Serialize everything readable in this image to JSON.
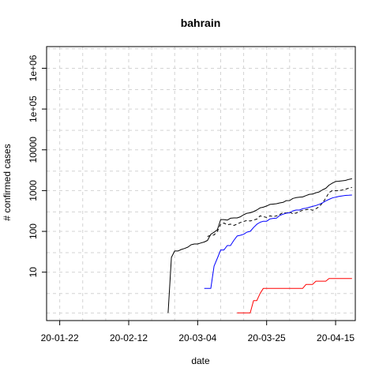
{
  "chart_data": {
    "type": "line",
    "title": "bahrain",
    "xlabel": "date",
    "ylabel": "# confirmed cases",
    "yscale": "log",
    "grid": true,
    "legend": "none",
    "x_range": [
      "2020-01-18",
      "2020-04-21"
    ],
    "y_range": [
      0.65,
      3400000
    ],
    "x_ticks": [
      {
        "label": "20-01-22",
        "date": "2020-01-22"
      },
      {
        "label": "20-02-12",
        "date": "2020-02-12"
      },
      {
        "label": "20-03-04",
        "date": "2020-03-04"
      },
      {
        "label": "20-03-25",
        "date": "2020-03-25"
      },
      {
        "label": "20-04-15",
        "date": "2020-04-15"
      }
    ],
    "y_ticks": [
      {
        "label": "10",
        "value": 10
      },
      {
        "label": "100",
        "value": 100
      },
      {
        "label": "1000",
        "value": 1000
      },
      {
        "label": "10000",
        "value": 10000
      },
      {
        "label": "1e+05",
        "value": 100000
      },
      {
        "label": "1e+06",
        "value": 1000000
      }
    ],
    "series": [
      {
        "color": "#000000",
        "dash": "solid",
        "points": [
          [
            "2020-02-24",
            1
          ],
          [
            "2020-02-25",
            23
          ],
          [
            "2020-02-26",
            33
          ],
          [
            "2020-02-27",
            33
          ],
          [
            "2020-02-28",
            36
          ],
          [
            "2020-02-29",
            38
          ],
          [
            "2020-03-01",
            41
          ],
          [
            "2020-03-02",
            47
          ],
          [
            "2020-03-03",
            49
          ],
          [
            "2020-03-04",
            49
          ],
          [
            "2020-03-05",
            52
          ],
          [
            "2020-03-06",
            55
          ],
          [
            "2020-03-07",
            60
          ],
          [
            "2020-03-08",
            85
          ],
          [
            "2020-03-09",
            95
          ],
          [
            "2020-03-10",
            110
          ],
          [
            "2020-03-11",
            195
          ],
          [
            "2020-03-12",
            195
          ],
          [
            "2020-03-13",
            189
          ],
          [
            "2020-03-14",
            210
          ],
          [
            "2020-03-15",
            214
          ],
          [
            "2020-03-16",
            214
          ],
          [
            "2020-03-17",
            228
          ],
          [
            "2020-03-18",
            256
          ],
          [
            "2020-03-19",
            278
          ],
          [
            "2020-03-20",
            285
          ],
          [
            "2020-03-21",
            305
          ],
          [
            "2020-03-22",
            334
          ],
          [
            "2020-03-23",
            377
          ],
          [
            "2020-03-24",
            392
          ],
          [
            "2020-03-25",
            419
          ],
          [
            "2020-03-26",
            458
          ],
          [
            "2020-03-27",
            466
          ],
          [
            "2020-03-28",
            476
          ],
          [
            "2020-03-29",
            499
          ],
          [
            "2020-03-30",
            515
          ],
          [
            "2020-03-31",
            567
          ],
          [
            "2020-04-01",
            569
          ],
          [
            "2020-04-02",
            643
          ],
          [
            "2020-04-03",
            672
          ],
          [
            "2020-04-04",
            688
          ],
          [
            "2020-04-05",
            700
          ],
          [
            "2020-04-06",
            756
          ],
          [
            "2020-04-07",
            811
          ],
          [
            "2020-04-08",
            823
          ],
          [
            "2020-04-09",
            887
          ],
          [
            "2020-04-10",
            925
          ],
          [
            "2020-04-11",
            1040
          ],
          [
            "2020-04-12",
            1136
          ],
          [
            "2020-04-13",
            1361
          ],
          [
            "2020-04-14",
            1528
          ],
          [
            "2020-04-15",
            1671
          ],
          [
            "2020-04-16",
            1700
          ],
          [
            "2020-04-17",
            1740
          ],
          [
            "2020-04-18",
            1773
          ],
          [
            "2020-04-19",
            1881
          ],
          [
            "2020-04-20",
            1952
          ]
        ]
      },
      {
        "color": "#000000",
        "dash": "dashed",
        "points": [
          [
            "2020-03-07",
            75
          ],
          [
            "2020-03-08",
            80
          ],
          [
            "2020-03-09",
            82
          ],
          [
            "2020-03-10",
            100
          ],
          [
            "2020-03-11",
            150
          ],
          [
            "2020-03-12",
            160
          ],
          [
            "2020-03-13",
            145
          ],
          [
            "2020-03-14",
            150
          ],
          [
            "2020-03-15",
            140
          ],
          [
            "2020-03-16",
            150
          ],
          [
            "2020-03-17",
            165
          ],
          [
            "2020-03-18",
            175
          ],
          [
            "2020-03-19",
            185
          ],
          [
            "2020-03-20",
            180
          ],
          [
            "2020-03-21",
            190
          ],
          [
            "2020-03-22",
            200
          ],
          [
            "2020-03-23",
            240
          ],
          [
            "2020-03-24",
            230
          ],
          [
            "2020-03-25",
            220
          ],
          [
            "2020-03-26",
            240
          ],
          [
            "2020-03-27",
            230
          ],
          [
            "2020-03-28",
            240
          ],
          [
            "2020-03-29",
            260
          ],
          [
            "2020-03-30",
            290
          ],
          [
            "2020-03-31",
            280
          ],
          [
            "2020-04-01",
            300
          ],
          [
            "2020-04-02",
            270
          ],
          [
            "2020-04-03",
            280
          ],
          [
            "2020-04-04",
            310
          ],
          [
            "2020-04-05",
            330
          ],
          [
            "2020-04-06",
            340
          ],
          [
            "2020-04-07",
            350
          ],
          [
            "2020-04-08",
            330
          ],
          [
            "2020-04-09",
            360
          ],
          [
            "2020-04-10",
            400
          ],
          [
            "2020-04-11",
            500
          ],
          [
            "2020-04-12",
            650
          ],
          [
            "2020-04-13",
            900
          ],
          [
            "2020-04-14",
            1000
          ],
          [
            "2020-04-15",
            990
          ],
          [
            "2020-04-16",
            1000
          ],
          [
            "2020-04-17",
            1030
          ],
          [
            "2020-04-18",
            1080
          ],
          [
            "2020-04-19",
            1150
          ],
          [
            "2020-04-20",
            1200
          ]
        ]
      },
      {
        "color": "#0000ff",
        "dash": "solid",
        "points": [
          [
            "2020-03-06",
            4
          ],
          [
            "2020-03-07",
            4
          ],
          [
            "2020-03-08",
            4
          ],
          [
            "2020-03-09",
            14
          ],
          [
            "2020-03-10",
            22
          ],
          [
            "2020-03-11",
            35
          ],
          [
            "2020-03-12",
            35
          ],
          [
            "2020-03-13",
            45
          ],
          [
            "2020-03-14",
            45
          ],
          [
            "2020-03-15",
            60
          ],
          [
            "2020-03-16",
            77
          ],
          [
            "2020-03-17",
            80
          ],
          [
            "2020-03-18",
            85
          ],
          [
            "2020-03-19",
            96
          ],
          [
            "2020-03-20",
            100
          ],
          [
            "2020-03-21",
            124
          ],
          [
            "2020-03-22",
            149
          ],
          [
            "2020-03-23",
            167
          ],
          [
            "2020-03-24",
            177
          ],
          [
            "2020-03-25",
            177
          ],
          [
            "2020-03-26",
            202
          ],
          [
            "2020-03-27",
            208
          ],
          [
            "2020-03-28",
            211
          ],
          [
            "2020-03-29",
            246
          ],
          [
            "2020-03-30",
            264
          ],
          [
            "2020-03-31",
            279
          ],
          [
            "2020-04-01",
            286
          ],
          [
            "2020-04-02",
            319
          ],
          [
            "2020-04-03",
            334
          ],
          [
            "2020-04-04",
            334
          ],
          [
            "2020-04-05",
            360
          ],
          [
            "2020-04-06",
            370
          ],
          [
            "2020-04-07",
            390
          ],
          [
            "2020-04-08",
            410
          ],
          [
            "2020-04-09",
            430
          ],
          [
            "2020-04-10",
            460
          ],
          [
            "2020-04-11",
            500
          ],
          [
            "2020-04-12",
            560
          ],
          [
            "2020-04-13",
            610
          ],
          [
            "2020-04-14",
            660
          ],
          [
            "2020-04-15",
            690
          ],
          [
            "2020-04-16",
            720
          ],
          [
            "2020-04-17",
            740
          ],
          [
            "2020-04-18",
            760
          ],
          [
            "2020-04-19",
            770
          ],
          [
            "2020-04-20",
            780
          ]
        ]
      },
      {
        "color": "#ff0000",
        "dash": "solid",
        "points": [
          [
            "2020-03-16",
            1
          ],
          [
            "2020-03-17",
            1
          ],
          [
            "2020-03-18",
            1
          ],
          [
            "2020-03-19",
            1
          ],
          [
            "2020-03-20",
            1
          ],
          [
            "2020-03-21",
            2
          ],
          [
            "2020-03-22",
            2
          ],
          [
            "2020-03-23",
            3
          ],
          [
            "2020-03-24",
            4
          ],
          [
            "2020-03-25",
            4
          ],
          [
            "2020-03-26",
            4
          ],
          [
            "2020-03-27",
            4
          ],
          [
            "2020-03-28",
            4
          ],
          [
            "2020-03-29",
            4
          ],
          [
            "2020-03-30",
            4
          ],
          [
            "2020-03-31",
            4
          ],
          [
            "2020-04-01",
            4
          ],
          [
            "2020-04-02",
            4
          ],
          [
            "2020-04-03",
            4
          ],
          [
            "2020-04-04",
            4
          ],
          [
            "2020-04-05",
            4
          ],
          [
            "2020-04-06",
            5
          ],
          [
            "2020-04-07",
            5
          ],
          [
            "2020-04-08",
            5
          ],
          [
            "2020-04-09",
            6
          ],
          [
            "2020-04-10",
            6
          ],
          [
            "2020-04-11",
            6
          ],
          [
            "2020-04-12",
            6
          ],
          [
            "2020-04-13",
            7
          ],
          [
            "2020-04-14",
            7
          ],
          [
            "2020-04-15",
            7
          ],
          [
            "2020-04-16",
            7
          ],
          [
            "2020-04-17",
            7
          ],
          [
            "2020-04-18",
            7
          ],
          [
            "2020-04-19",
            7
          ],
          [
            "2020-04-20",
            7
          ]
        ]
      }
    ]
  }
}
